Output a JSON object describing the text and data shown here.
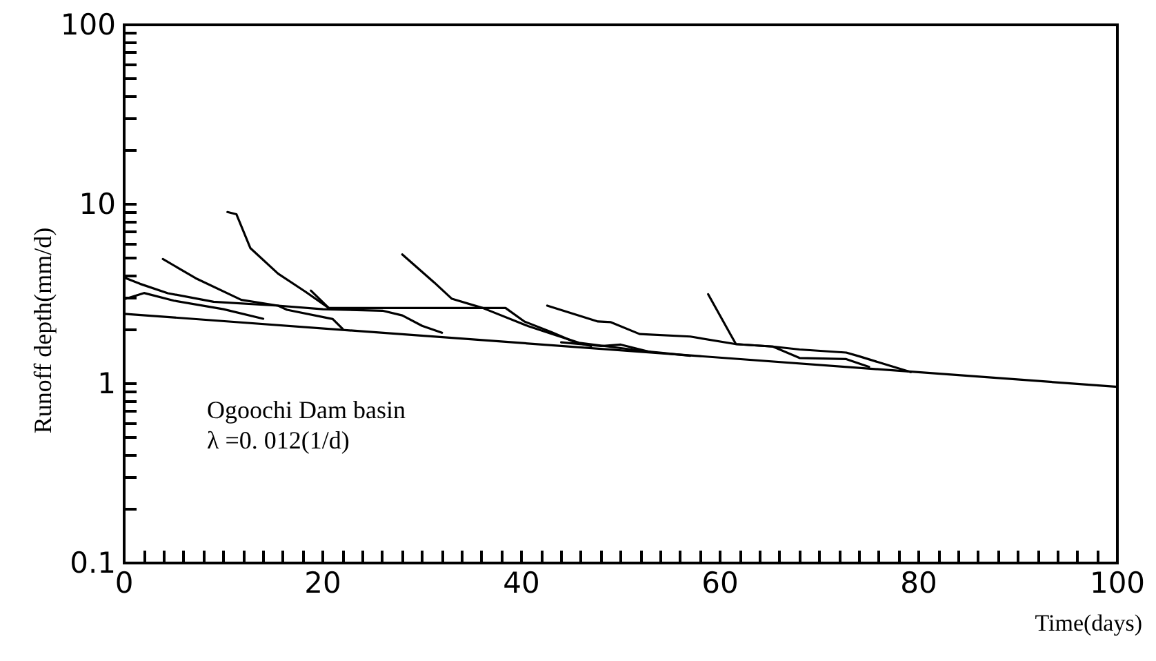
{
  "chart_data": {
    "type": "line",
    "xlabel": "Time(days)",
    "ylabel": "Runoff depth(mm/d)",
    "annotations": [
      "Ogoochi Dam basin",
      "λ =0. 012(1/d)"
    ],
    "log": "y",
    "grid": false,
    "line_style": "solid",
    "xlim": [
      0,
      100
    ],
    "ylim": [
      0.1,
      100
    ],
    "xticks": [
      0,
      {
        "value": 2,
        "label": null
      },
      {
        "value": 4,
        "label": null
      },
      {
        "value": 6,
        "label": null
      },
      {
        "value": 8,
        "label": null
      },
      {
        "value": 10,
        "label": null
      },
      {
        "value": 12,
        "label": null
      },
      {
        "value": 14,
        "label": null
      },
      {
        "value": 16,
        "label": null
      },
      {
        "value": 18,
        "label": null
      },
      20,
      {
        "value": 22,
        "label": null
      },
      {
        "value": 24,
        "label": null
      },
      {
        "value": 26,
        "label": null
      },
      {
        "value": 28,
        "label": null
      },
      {
        "value": 30,
        "label": null
      },
      {
        "value": 32,
        "label": null
      },
      {
        "value": 34,
        "label": null
      },
      {
        "value": 36,
        "label": null
      },
      {
        "value": 38,
        "label": null
      },
      40,
      {
        "value": 42,
        "label": null
      },
      {
        "value": 44,
        "label": null
      },
      {
        "value": 46,
        "label": null
      },
      {
        "value": 48,
        "label": null
      },
      {
        "value": 50,
        "label": null
      },
      {
        "value": 52,
        "label": null
      },
      {
        "value": 54,
        "label": null
      },
      {
        "value": 56,
        "label": null
      },
      {
        "value": 58,
        "label": null
      },
      60,
      {
        "value": 62,
        "label": null
      },
      {
        "value": 64,
        "label": null
      },
      {
        "value": 66,
        "label": null
      },
      {
        "value": 68,
        "label": null
      },
      {
        "value": 70,
        "label": null
      },
      {
        "value": 72,
        "label": null
      },
      {
        "value": 74,
        "label": null
      },
      {
        "value": 76,
        "label": null
      },
      {
        "value": 78,
        "label": null
      },
      80,
      {
        "value": 82,
        "label": null
      },
      {
        "value": 84,
        "label": null
      },
      {
        "value": 86,
        "label": null
      },
      {
        "value": 88,
        "label": null
      },
      {
        "value": 90,
        "label": null
      },
      {
        "value": 92,
        "label": null
      },
      {
        "value": 94,
        "label": null
      },
      {
        "value": 96,
        "label": null
      },
      {
        "value": 98,
        "label": null
      },
      100
    ],
    "yticks": [
      0.1,
      {
        "value": 0.2,
        "label": null
      },
      {
        "value": 0.3,
        "label": null
      },
      {
        "value": 0.4,
        "label": null
      },
      {
        "value": 0.5,
        "label": null
      },
      {
        "value": 0.6,
        "label": null
      },
      {
        "value": 0.7,
        "label": null
      },
      {
        "value": 0.8,
        "label": null
      },
      {
        "value": 0.9,
        "label": null
      },
      1,
      {
        "value": 2,
        "label": null
      },
      {
        "value": 3,
        "label": null
      },
      {
        "value": 4,
        "label": null
      },
      {
        "value": 5,
        "label": null
      },
      {
        "value": 6,
        "label": null
      },
      {
        "value": 7,
        "label": null
      },
      {
        "value": 8,
        "label": null
      },
      {
        "value": 9,
        "label": null
      },
      10,
      {
        "value": 20,
        "label": null
      },
      {
        "value": 30,
        "label": null
      },
      {
        "value": 40,
        "label": null
      },
      {
        "value": 50,
        "label": null
      },
      {
        "value": 60,
        "label": null
      },
      {
        "value": 70,
        "label": null
      },
      {
        "value": 80,
        "label": null
      },
      {
        "value": 90,
        "label": null
      },
      100
    ],
    "series": [
      {
        "color": "#000000",
        "x": [
          0,
          100
        ],
        "values": [
          2.45,
          0.96
        ]
      },
      {
        "color": "#000000",
        "x": [
          0,
          1.6,
          4.4,
          9,
          15.5,
          20,
          26,
          28,
          30,
          32
        ],
        "values": [
          3.9,
          3.6,
          3.19,
          2.86,
          2.72,
          2.6,
          2.55,
          2.4,
          2.1,
          1.92
        ]
      },
      {
        "color": "#000000",
        "x": [
          0,
          2,
          5,
          10,
          14
        ],
        "values": [
          2.95,
          3.2,
          2.9,
          2.6,
          2.3
        ]
      },
      {
        "color": "#000000",
        "x": [
          3.9,
          7.2,
          11.8,
          15.5,
          16.4,
          21,
          22
        ],
        "values": [
          4.95,
          3.87,
          2.93,
          2.72,
          2.58,
          2.29,
          2.02
        ]
      },
      {
        "color": "#000000",
        "x": [
          10.4,
          11.3,
          12.7,
          15.5,
          18.3,
          20.6,
          30,
          38.4,
          40.3,
          43,
          45.4,
          47
        ],
        "values": [
          9.05,
          8.8,
          5.7,
          4.1,
          3.24,
          2.64,
          2.64,
          2.64,
          2.22,
          1.94,
          1.7,
          1.62
        ]
      },
      {
        "color": "#000000",
        "x": [
          18.8,
          20.6
        ],
        "values": [
          3.3,
          2.64
        ]
      },
      {
        "color": "#000000",
        "x": [
          28,
          31.2,
          33,
          36.1,
          40.7,
          43.5,
          45.8,
          52.3,
          57
        ],
        "values": [
          5.25,
          3.67,
          2.97,
          2.64,
          2.09,
          1.86,
          1.69,
          1.52,
          1.43
        ]
      },
      {
        "color": "#000000",
        "x": [
          42.6,
          47.7,
          49,
          51.9,
          57,
          61.6,
          65.3,
          68,
          72.7,
          74,
          79.2
        ],
        "values": [
          2.72,
          2.22,
          2.2,
          1.89,
          1.83,
          1.66,
          1.61,
          1.55,
          1.49,
          1.42,
          1.16
        ]
      },
      {
        "color": "#000000",
        "x": [
          58.8,
          61.1,
          61.6,
          65.3,
          68,
          72.7,
          75
        ],
        "values": [
          3.15,
          1.86,
          1.66,
          1.61,
          1.39,
          1.37,
          1.24
        ]
      },
      {
        "color": "#000000",
        "x": [
          44,
          48,
          50,
          53
        ],
        "values": [
          1.7,
          1.62,
          1.65,
          1.5
        ]
      }
    ]
  }
}
